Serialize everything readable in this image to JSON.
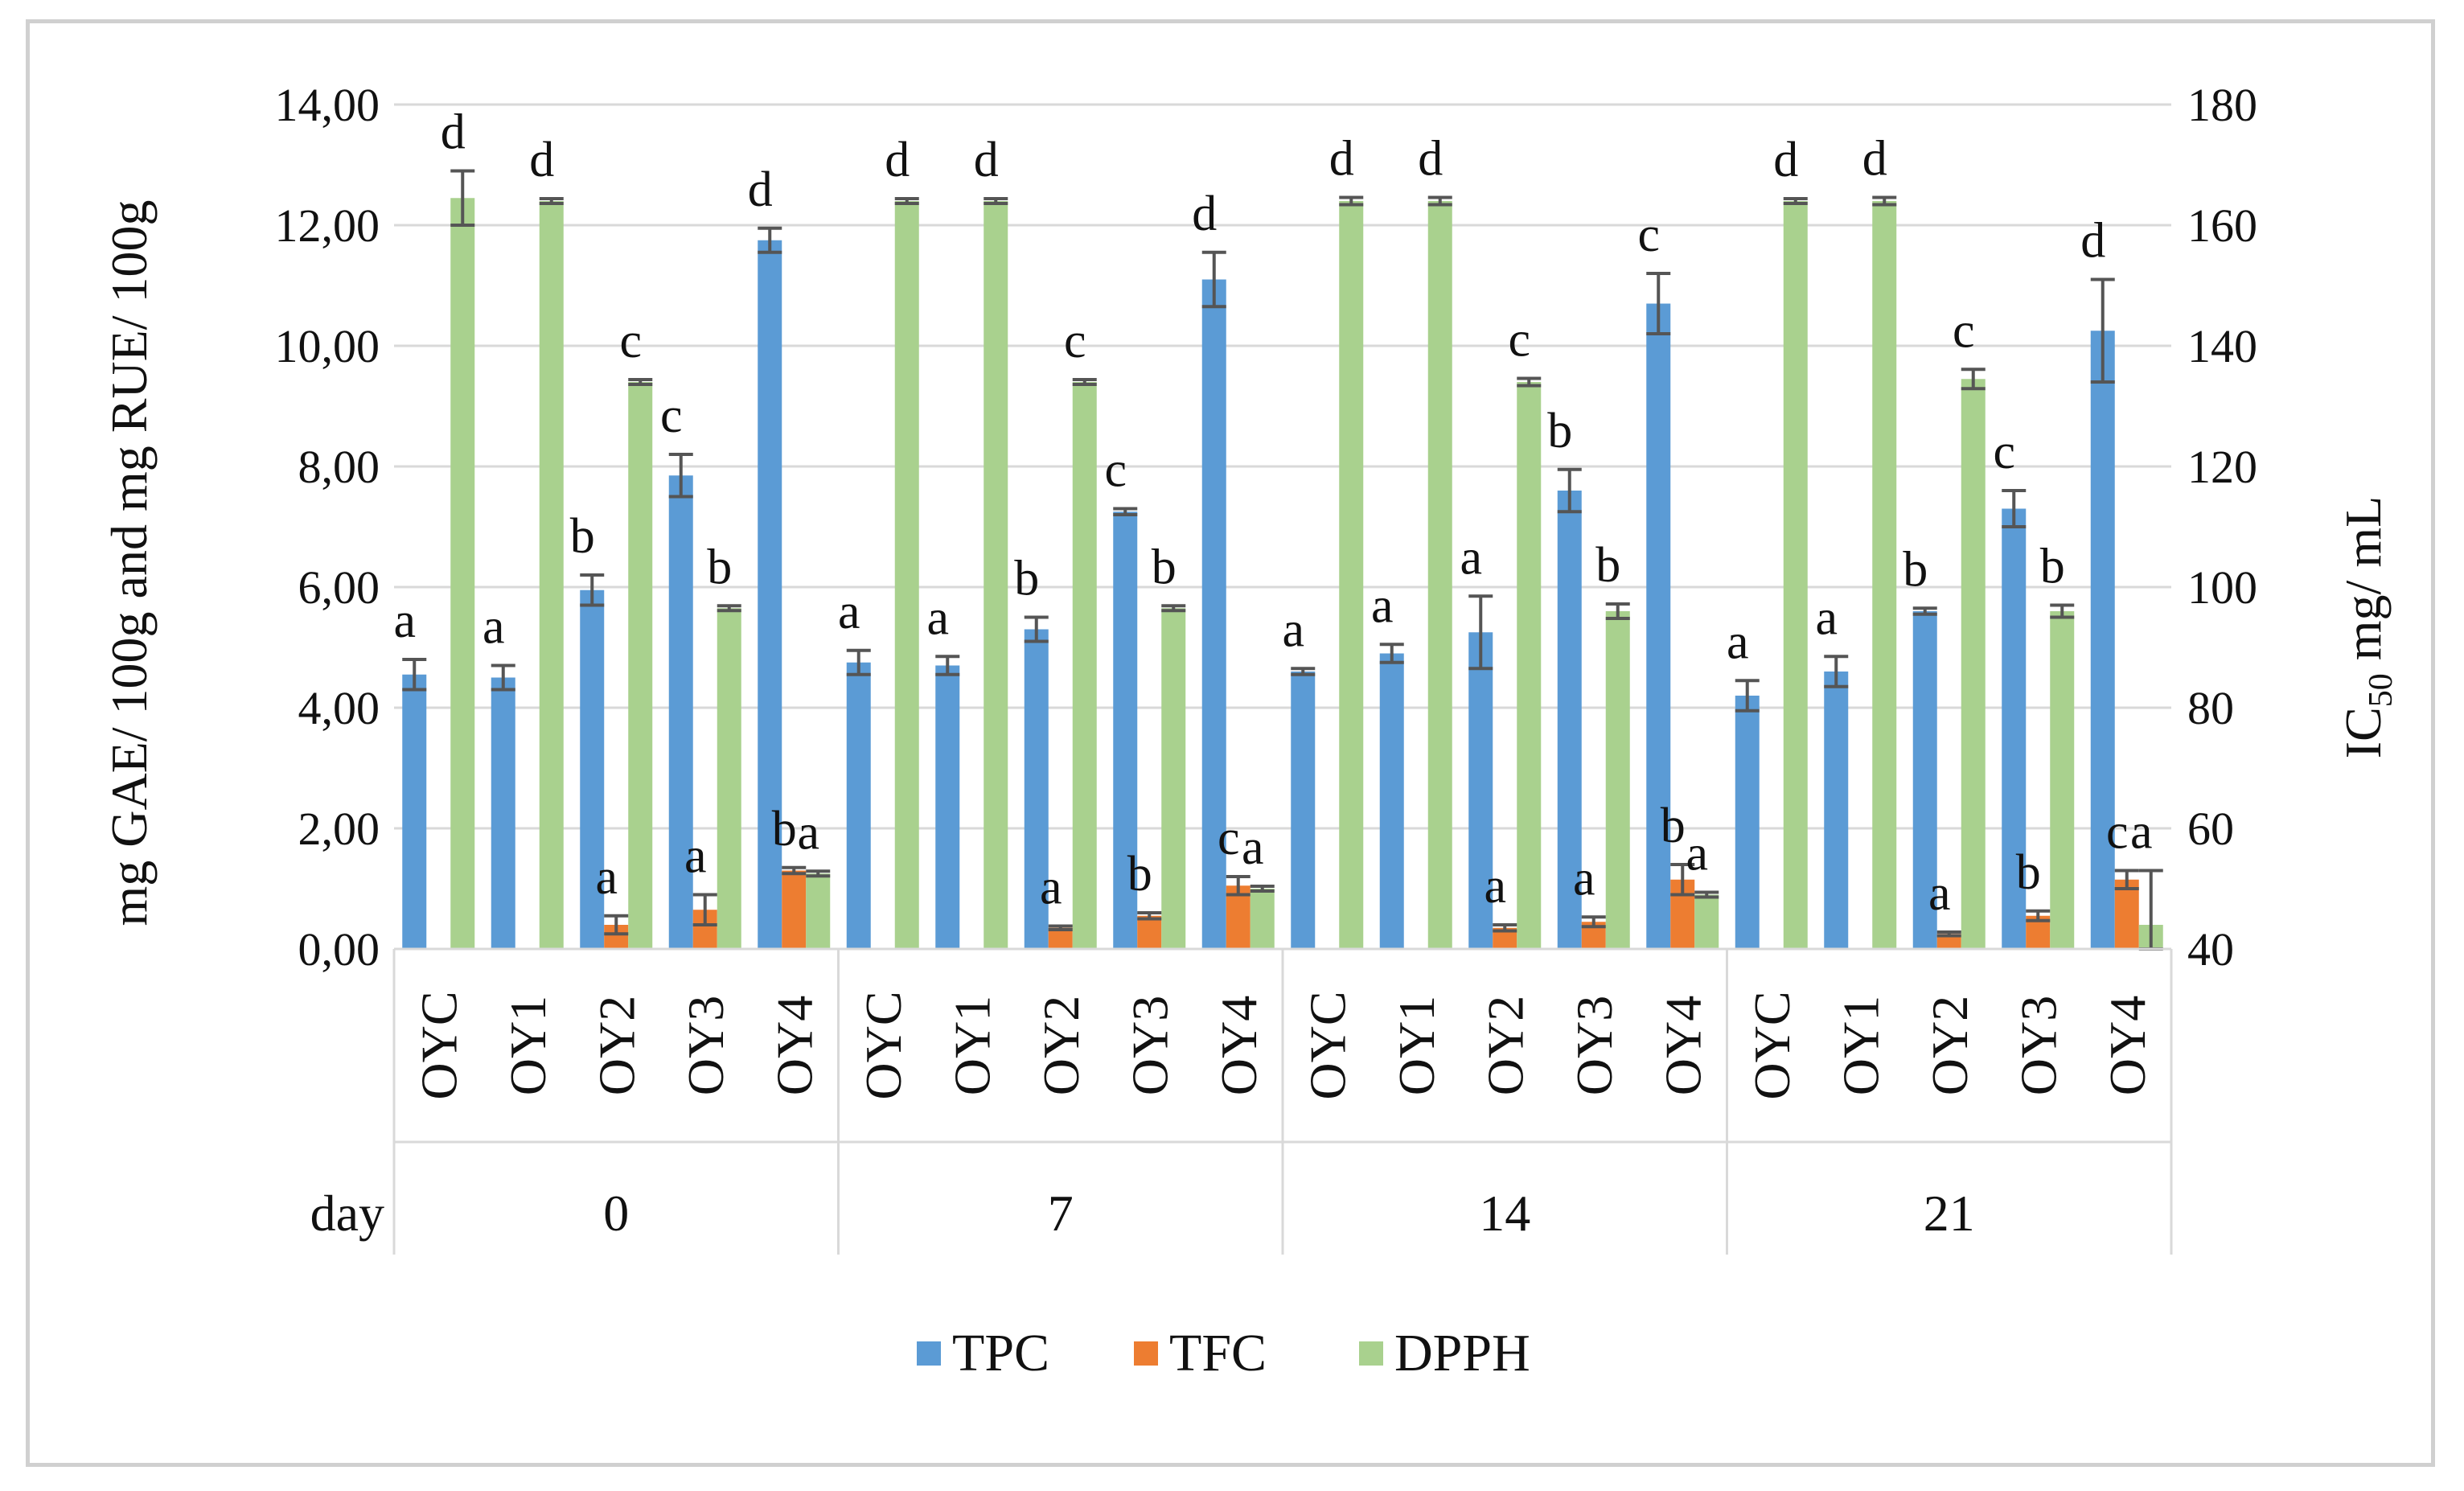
{
  "chart_data": {
    "type": "bar",
    "left_axis": {
      "label_prefix": "mg GAE/ 100g and mg RUE/ 100g",
      "min": 0,
      "max": 14,
      "step": 2,
      "ticks": [
        "0,00",
        "2,00",
        "4,00",
        "6,00",
        "8,00",
        "10,00",
        "12,00",
        "14,00"
      ]
    },
    "right_axis": {
      "label_main": "IC",
      "label_sub": "50",
      "label_unit": " mg/ mL",
      "min": 40,
      "max": 180,
      "step": 20,
      "ticks": [
        "40",
        "60",
        "80",
        "100",
        "120",
        "140",
        "160",
        "180"
      ]
    },
    "x_axis": {
      "group_label": "day",
      "days": [
        "0",
        "7",
        "14",
        "21"
      ],
      "samples": [
        "OYC",
        "OY1",
        "OY2",
        "OY3",
        "OY4"
      ]
    },
    "legend": [
      {
        "name": "TPC",
        "color": "#5B9BD5"
      },
      {
        "name": "TFC",
        "color": "#ED7D31"
      },
      {
        "name": "DPPH",
        "color": "#A9D18E"
      }
    ],
    "series": [
      {
        "name": "TPC",
        "axis": "left",
        "values": [
          4.55,
          4.5,
          5.95,
          7.85,
          11.75,
          4.75,
          4.7,
          5.3,
          7.25,
          11.1,
          4.6,
          4.9,
          5.25,
          7.6,
          10.7,
          4.2,
          4.6,
          5.6,
          7.3,
          10.25
        ],
        "errors": [
          0.25,
          0.2,
          0.25,
          0.35,
          0.2,
          0.2,
          0.15,
          0.2,
          0.05,
          0.45,
          0.05,
          0.15,
          0.6,
          0.35,
          0.5,
          0.25,
          0.25,
          0.05,
          0.3,
          0.85
        ],
        "letters": [
          "a",
          "a",
          "b",
          "c",
          "d",
          "a",
          "a",
          "b",
          "c",
          "d",
          "a",
          "a",
          "a",
          "b",
          "c",
          "a",
          "a",
          "b",
          "c",
          "d"
        ]
      },
      {
        "name": "TFC",
        "axis": "left",
        "values": [
          0,
          0,
          0.4,
          0.65,
          1.3,
          0,
          0,
          0.35,
          0.55,
          1.05,
          0,
          0,
          0.35,
          0.45,
          1.15,
          0,
          0,
          0.25,
          0.55,
          1.15
        ],
        "errors": [
          0,
          0,
          0.15,
          0.25,
          0.05,
          0,
          0,
          0.03,
          0.05,
          0.15,
          0,
          0,
          0.05,
          0.08,
          0.25,
          0,
          0,
          0.03,
          0.08,
          0.15
        ],
        "letters": [
          "",
          "",
          "a",
          "a",
          "b",
          "",
          "",
          "a",
          "b",
          "c",
          "",
          "",
          "a",
          "a",
          "b",
          "",
          "",
          "a",
          "b",
          "c"
        ]
      },
      {
        "name": "DPPH",
        "axis": "right",
        "values": [
          164.5,
          164,
          134,
          96.5,
          52.5,
          164,
          164,
          134,
          96.5,
          50,
          164,
          164,
          134,
          96,
          49,
          164,
          164,
          134.5,
          96,
          44
        ],
        "errors": [
          4.5,
          0.4,
          0.4,
          0.4,
          0.4,
          0.4,
          0.4,
          0.4,
          0.4,
          0.4,
          0.6,
          0.6,
          0.6,
          1.2,
          0.4,
          0.4,
          0.6,
          1.6,
          1.0,
          9.0
        ],
        "letters": [
          "d",
          "d",
          "c",
          "b",
          "a",
          "d",
          "d",
          "c",
          "b",
          "a",
          "d",
          "d",
          "c",
          "b",
          "a",
          "d",
          "d",
          "c",
          "b",
          "a"
        ]
      }
    ]
  }
}
